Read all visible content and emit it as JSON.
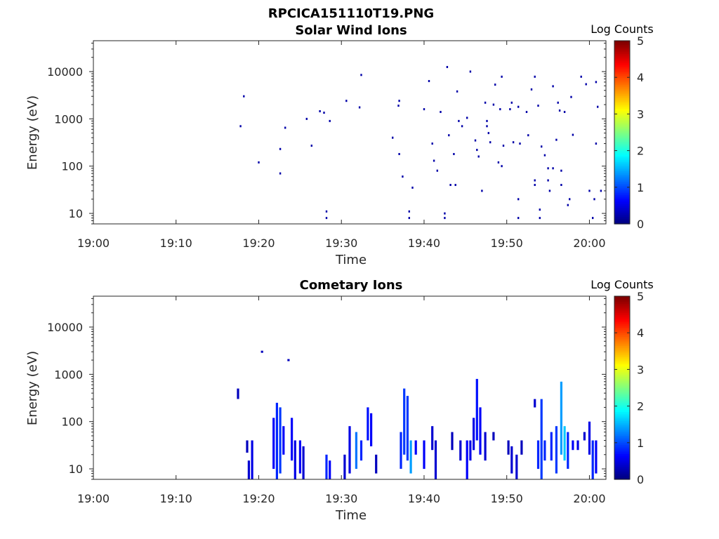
{
  "figure_title": "RPCICA151110T19.PNG",
  "chart_data": [
    {
      "type": "heatmap",
      "title": "Solar Wind Ions",
      "xlabel": "Time",
      "ylabel": "Energy (eV)",
      "y_scale": "log",
      "xlim": [
        "19:00",
        "20:02"
      ],
      "ylim": [
        6,
        45000
      ],
      "x_ticks": [
        "19:00",
        "19:10",
        "19:20",
        "19:30",
        "19:40",
        "19:50",
        "20:00"
      ],
      "y_ticks": [
        "10",
        "100",
        "1000",
        "10000"
      ],
      "colorbar": {
        "label": "Log Counts",
        "range": [
          0,
          5
        ],
        "ticks": [
          "0",
          "1",
          "2",
          "3",
          "4",
          "5"
        ]
      },
      "cells_description": "[time_min, energy_eV, log_counts]",
      "cells": [
        [
          17.8,
          700,
          0.2
        ],
        [
          18.2,
          3000,
          0.2
        ],
        [
          20.0,
          120,
          0.2
        ],
        [
          22.6,
          230,
          0.2
        ],
        [
          22.6,
          70,
          0.2
        ],
        [
          23.2,
          650,
          0.2
        ],
        [
          25.8,
          1000,
          0.2
        ],
        [
          26.4,
          270,
          0.2
        ],
        [
          27.4,
          1450,
          0.2
        ],
        [
          27.9,
          1350,
          0.2
        ],
        [
          28.6,
          900,
          0.2
        ],
        [
          28.2,
          8,
          0.2
        ],
        [
          28.2,
          11,
          0.2
        ],
        [
          30.6,
          2400,
          0.2
        ],
        [
          32.2,
          1750,
          0.2
        ],
        [
          32.4,
          8500,
          0.2
        ],
        [
          36.2,
          400,
          0.2
        ],
        [
          36.9,
          1900,
          0.2
        ],
        [
          37.0,
          2400,
          0.2
        ],
        [
          37.0,
          180,
          0.2
        ],
        [
          37.4,
          60,
          0.2
        ],
        [
          38.6,
          35,
          0.2
        ],
        [
          38.2,
          8,
          0.2
        ],
        [
          38.2,
          11,
          0.2
        ],
        [
          40.0,
          1600,
          0.2
        ],
        [
          40.6,
          6300,
          0.2
        ],
        [
          41.0,
          300,
          0.2
        ],
        [
          41.2,
          130,
          0.2
        ],
        [
          41.6,
          80,
          0.2
        ],
        [
          42.0,
          1400,
          0.2
        ],
        [
          42.5,
          8,
          0.2
        ],
        [
          42.5,
          10,
          0.2
        ],
        [
          42.8,
          12500,
          0.2
        ],
        [
          43.0,
          450,
          0.2
        ],
        [
          43.2,
          40,
          0.2
        ],
        [
          43.8,
          40,
          0.2
        ],
        [
          43.6,
          180,
          0.2
        ],
        [
          44.0,
          3800,
          0.2
        ],
        [
          44.2,
          900,
          0.2
        ],
        [
          44.6,
          700,
          0.2
        ],
        [
          45.2,
          1050,
          0.2
        ],
        [
          45.6,
          10000,
          0.2
        ],
        [
          46.2,
          350,
          0.2
        ],
        [
          46.4,
          220,
          0.2
        ],
        [
          46.6,
          160,
          0.2
        ],
        [
          47.0,
          30,
          0.2
        ],
        [
          47.4,
          2200,
          0.2
        ],
        [
          47.6,
          900,
          0.2
        ],
        [
          47.6,
          700,
          0.2
        ],
        [
          47.8,
          500,
          0.2
        ],
        [
          48.0,
          320,
          0.2
        ],
        [
          48.4,
          2000,
          0.2
        ],
        [
          48.6,
          5300,
          0.2
        ],
        [
          49.2,
          1600,
          0.2
        ],
        [
          49.4,
          7800,
          0.2
        ],
        [
          49.6,
          270,
          0.2
        ],
        [
          49.0,
          120,
          0.2
        ],
        [
          49.4,
          100,
          0.2
        ],
        [
          50.4,
          1600,
          0.2
        ],
        [
          50.6,
          2200,
          0.2
        ],
        [
          50.8,
          320,
          0.2
        ],
        [
          51.4,
          1800,
          0.2
        ],
        [
          51.6,
          300,
          0.2
        ],
        [
          51.4,
          20,
          0.2
        ],
        [
          51.4,
          8,
          0.2
        ],
        [
          52.4,
          1400,
          0.2
        ],
        [
          52.6,
          450,
          0.2
        ],
        [
          53.0,
          4200,
          0.2
        ],
        [
          53.4,
          7800,
          0.2
        ],
        [
          53.4,
          50,
          0.2
        ],
        [
          53.4,
          40,
          0.2
        ],
        [
          53.8,
          1900,
          0.2
        ],
        [
          54.0,
          12,
          0.2
        ],
        [
          54.0,
          8,
          0.2
        ],
        [
          54.2,
          260,
          0.2
        ],
        [
          54.6,
          170,
          0.2
        ],
        [
          55.0,
          90,
          0.2
        ],
        [
          55.0,
          50,
          0.2
        ],
        [
          55.2,
          30,
          0.2
        ],
        [
          55.6,
          4900,
          0.2
        ],
        [
          55.6,
          90,
          0.2
        ],
        [
          56.0,
          360,
          0.2
        ],
        [
          56.2,
          2200,
          0.2
        ],
        [
          56.4,
          1500,
          0.2
        ],
        [
          56.6,
          80,
          0.2
        ],
        [
          56.6,
          40,
          0.2
        ],
        [
          57.0,
          1400,
          0.2
        ],
        [
          57.4,
          15,
          0.2
        ],
        [
          57.6,
          20,
          0.2
        ],
        [
          57.8,
          2900,
          0.2
        ],
        [
          58.0,
          460,
          0.2
        ],
        [
          59.0,
          7800,
          0.2
        ],
        [
          59.6,
          5400,
          0.2
        ],
        [
          60.0,
          30,
          0.2
        ],
        [
          60.4,
          8,
          0.2
        ],
        [
          60.8,
          6000,
          0.2
        ],
        [
          60.8,
          300,
          0.2
        ],
        [
          60.6,
          20,
          0.2
        ],
        [
          61.0,
          1800,
          0.2
        ],
        [
          61.4,
          30,
          0.2
        ]
      ]
    },
    {
      "type": "heatmap",
      "title": "Cometary Ions",
      "xlabel": "Time",
      "ylabel": "Energy (eV)",
      "y_scale": "log",
      "xlim": [
        "19:00",
        "20:02"
      ],
      "ylim": [
        6,
        45000
      ],
      "x_ticks": [
        "19:00",
        "19:10",
        "19:20",
        "19:30",
        "19:40",
        "19:50",
        "20:00"
      ],
      "y_ticks": [
        "10",
        "100",
        "1000",
        "10000"
      ],
      "colorbar": {
        "label": "Log Counts",
        "range": [
          0,
          5
        ],
        "ticks": [
          "0",
          "1",
          "2",
          "3",
          "4",
          "5"
        ]
      },
      "bursts_description": "[time_min, energy_low_eV, energy_high_eV, log_counts] vertical bands",
      "bursts": [
        [
          17.5,
          300,
          500,
          0.3
        ],
        [
          18.6,
          22,
          40,
          0.3
        ],
        [
          18.8,
          6,
          15,
          0.4
        ],
        [
          19.2,
          6,
          40,
          0.5
        ],
        [
          20.4,
          3000,
          3000,
          0.3
        ],
        [
          21.8,
          10,
          120,
          0.6
        ],
        [
          22.2,
          6,
          250,
          0.8
        ],
        [
          22.6,
          8,
          200,
          0.9
        ],
        [
          23.0,
          20,
          80,
          0.6
        ],
        [
          23.6,
          2000,
          2000,
          0.3
        ],
        [
          24.0,
          15,
          120,
          0.6
        ],
        [
          24.4,
          6,
          40,
          0.5
        ],
        [
          25.0,
          8,
          40,
          0.6
        ],
        [
          25.4,
          6,
          30,
          0.4
        ],
        [
          28.2,
          6,
          20,
          0.8
        ],
        [
          28.6,
          6,
          15,
          0.6
        ],
        [
          30.4,
          6,
          20,
          0.4
        ],
        [
          31.0,
          8,
          80,
          0.5
        ],
        [
          31.8,
          10,
          60,
          1.2
        ],
        [
          32.4,
          15,
          40,
          0.8
        ],
        [
          33.2,
          40,
          200,
          0.7
        ],
        [
          33.6,
          30,
          150,
          0.6
        ],
        [
          34.2,
          8,
          20,
          0.3
        ],
        [
          37.2,
          10,
          60,
          0.8
        ],
        [
          37.6,
          20,
          500,
          0.9
        ],
        [
          38.0,
          15,
          350,
          0.9
        ],
        [
          38.4,
          8,
          40,
          1.4
        ],
        [
          39.0,
          20,
          40,
          0.6
        ],
        [
          40.0,
          10,
          40,
          0.6
        ],
        [
          41.0,
          25,
          80,
          0.4
        ],
        [
          41.4,
          6,
          40,
          0.4
        ],
        [
          43.4,
          25,
          60,
          0.3
        ],
        [
          44.4,
          15,
          40,
          0.4
        ],
        [
          45.2,
          6,
          40,
          0.6
        ],
        [
          45.6,
          15,
          40,
          0.5
        ],
        [
          46.0,
          25,
          120,
          0.5
        ],
        [
          46.4,
          40,
          800,
          0.7
        ],
        [
          46.8,
          20,
          200,
          0.6
        ],
        [
          47.4,
          15,
          60,
          0.4
        ],
        [
          48.4,
          40,
          60,
          0.3
        ],
        [
          50.2,
          20,
          40,
          0.3
        ],
        [
          50.6,
          8,
          30,
          0.4
        ],
        [
          51.2,
          6,
          20,
          0.4
        ],
        [
          51.8,
          20,
          40,
          0.3
        ],
        [
          53.4,
          200,
          300,
          0.4
        ],
        [
          53.8,
          10,
          40,
          0.8
        ],
        [
          54.2,
          6,
          300,
          0.9
        ],
        [
          54.6,
          15,
          40,
          0.8
        ],
        [
          55.4,
          15,
          60,
          0.8
        ],
        [
          56.0,
          8,
          80,
          0.9
        ],
        [
          56.6,
          20,
          700,
          1.4
        ],
        [
          57.0,
          15,
          80,
          1.6
        ],
        [
          57.4,
          10,
          60,
          0.8
        ],
        [
          58.0,
          25,
          40,
          0.6
        ],
        [
          58.6,
          25,
          40,
          0.5
        ],
        [
          59.4,
          40,
          60,
          0.4
        ],
        [
          60.0,
          20,
          100,
          0.5
        ],
        [
          60.4,
          6,
          40,
          0.8
        ],
        [
          60.8,
          8,
          40,
          0.6
        ]
      ]
    }
  ]
}
